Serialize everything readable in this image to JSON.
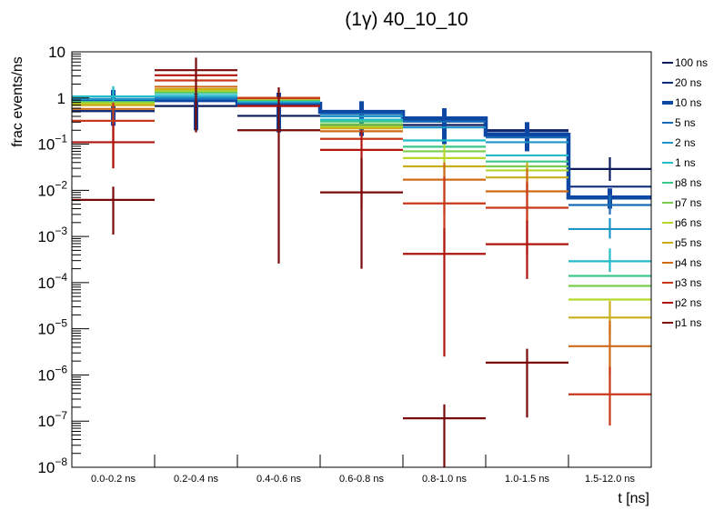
{
  "chart_data": {
    "type": "line",
    "subtype": "step-histogram-with-error-bars",
    "title": "(1γ) 40_10_10",
    "xlabel": "t [ns]",
    "ylabel": "frac events/ns",
    "yscale": "log",
    "ylim": [
      1e-08,
      10
    ],
    "y_ticks": [
      {
        "value": 10,
        "label": "10"
      },
      {
        "value": 1,
        "label": "1"
      },
      {
        "value": 0.1,
        "base": "10",
        "exp": "−1"
      },
      {
        "value": 0.01,
        "base": "10",
        "exp": "−2"
      },
      {
        "value": 0.001,
        "base": "10",
        "exp": "−3"
      },
      {
        "value": 0.0001,
        "base": "10",
        "exp": "−4"
      },
      {
        "value": 1e-05,
        "base": "10",
        "exp": "−5"
      },
      {
        "value": 1e-06,
        "base": "10",
        "exp": "−6"
      },
      {
        "value": 1e-07,
        "base": "10",
        "exp": "−7"
      },
      {
        "value": 1e-08,
        "base": "10",
        "exp": "−8"
      }
    ],
    "categories": [
      "0.0-0.2 ns",
      "0.2-0.4 ns",
      "0.4-0.6 ns",
      "0.6-0.8 ns",
      "0.8-1.0 ns",
      "1.0-1.5 ns",
      "1.5-12.0 ns"
    ],
    "grid": false,
    "legend_position": "right",
    "series": [
      {
        "name": "100 ns",
        "color": "#0a1a5a",
        "width": "thin",
        "values": [
          0.52,
          0.67,
          0.41,
          0.27,
          0.26,
          0.2,
          0.029
        ],
        "errors": [
          null,
          null,
          null,
          null,
          null,
          null,
          [
            0.016,
            0.052
          ]
        ]
      },
      {
        "name": "20 ns",
        "color": "#0d2c7a",
        "width": "thin",
        "values": [
          0.52,
          0.92,
          0.72,
          0.26,
          0.31,
          0.19,
          0.012
        ],
        "errors": [
          null,
          null,
          null,
          null,
          null,
          null,
          null
        ]
      },
      {
        "name": "10 ns",
        "color": "#0b47a3",
        "width": "thick",
        "values": [
          0.9,
          0.9,
          0.75,
          0.5,
          0.36,
          0.16,
          0.007
        ],
        "errors": [
          [
            0.25,
            1.5
          ],
          [
            0.2,
            1.4
          ],
          [
            0.18,
            1.3
          ],
          [
            0.15,
            0.85
          ],
          [
            0.1,
            0.6
          ],
          [
            0.07,
            0.3
          ],
          [
            0.004,
            0.011
          ]
        ]
      },
      {
        "name": "5 ns",
        "color": "#1a6bb5",
        "width": "thin",
        "values": [
          0.93,
          0.95,
          0.78,
          0.45,
          0.31,
          0.14,
          0.0048
        ],
        "errors": [
          null,
          null,
          null,
          null,
          null,
          null,
          [
            0.003,
            0.008
          ]
        ]
      },
      {
        "name": "2 ns",
        "color": "#1e95c8",
        "width": "thin",
        "values": [
          0.95,
          1.03,
          0.82,
          0.4,
          0.23,
          0.11,
          0.00145
        ],
        "errors": [
          null,
          null,
          null,
          null,
          null,
          null,
          [
            0.0009,
            0.0025
          ]
        ]
      },
      {
        "name": "1 ns",
        "color": "#23bcc8",
        "width": "thin",
        "values": [
          1.08,
          1.15,
          0.86,
          0.34,
          0.12,
          0.057,
          0.00029
        ],
        "errors": [
          [
            0.5,
            1.8
          ],
          null,
          null,
          null,
          null,
          null,
          [
            0.00017,
            0.00055
          ]
        ]
      },
      {
        "name": "p8 ns",
        "color": "#3cc78a",
        "width": "thin",
        "values": [
          0.82,
          1.3,
          0.9,
          0.31,
          0.088,
          0.042,
          0.00014
        ],
        "errors": [
          null,
          null,
          null,
          null,
          null,
          null,
          null
        ]
      },
      {
        "name": "p7 ns",
        "color": "#7acc4e",
        "width": "thin",
        "values": [
          0.79,
          1.38,
          0.93,
          0.27,
          0.07,
          0.033,
          8.5e-05
        ],
        "errors": [
          null,
          null,
          null,
          null,
          null,
          null,
          null
        ]
      },
      {
        "name": "p6 ns",
        "color": "#b5d62a",
        "width": "thin",
        "values": [
          0.76,
          1.45,
          0.96,
          0.24,
          0.05,
          0.027,
          4.3e-05
        ],
        "errors": [
          null,
          null,
          null,
          null,
          [
            0.02,
            0.1
          ],
          null,
          null
        ]
      },
      {
        "name": "p5 ns",
        "color": "#c9ae1a",
        "width": "thin",
        "values": [
          0.7,
          1.55,
          0.98,
          0.22,
          0.033,
          0.019,
          1.75e-05
        ],
        "errors": [
          null,
          null,
          null,
          null,
          null,
          [
            0.008,
            0.04
          ],
          [
            7e-06,
            4e-05
          ]
        ]
      },
      {
        "name": "p4 ns",
        "color": "#cf6b16",
        "width": "thin",
        "values": [
          0.58,
          1.75,
          1.0,
          0.19,
          0.017,
          0.0095,
          4.2e-06
        ],
        "errors": [
          null,
          null,
          null,
          null,
          [
            0.003,
            0.04
          ],
          [
            0.002,
            0.03
          ],
          [
            1e-06,
            1.5e-05
          ]
        ]
      },
      {
        "name": "p3 ns",
        "color": "#c8381a",
        "width": "thin",
        "values": [
          0.32,
          2.4,
          1.0,
          0.13,
          0.0052,
          0.0042,
          3.8e-07
        ],
        "errors": [
          [
            0.03,
            0.8
          ],
          null,
          null,
          null,
          [
            0.0005,
            0.02
          ],
          [
            0.0004,
            0.015
          ],
          [
            8e-08,
            1.5e-06
          ]
        ]
      },
      {
        "name": "p2 ns",
        "color": "#b0140f",
        "width": "thin",
        "values": [
          0.11,
          3.1,
          0.67,
          0.075,
          0.00042,
          0.00068,
          null
        ],
        "errors": [
          [
            0.03,
            0.28
          ],
          null,
          null,
          [
            0.004,
            0.2
          ],
          [
            2.5e-06,
            0.0015
          ],
          [
            0.00012,
            0.0022
          ],
          null
        ]
      },
      {
        "name": "p1 ns",
        "color": "#7a0a0a",
        "width": "thin",
        "values": [
          0.0062,
          4.0,
          0.2,
          0.009,
          1.15e-07,
          1.85e-06,
          null
        ],
        "errors": [
          [
            0.0011,
            0.012
          ],
          [
            0.18,
            7.5
          ],
          [
            0.00026,
            1.7
          ],
          [
            0.0002,
            0.05
          ],
          [
            1e-08,
            2.3e-07
          ],
          [
            1.2e-07,
            3.7e-06
          ],
          null
        ]
      }
    ]
  }
}
